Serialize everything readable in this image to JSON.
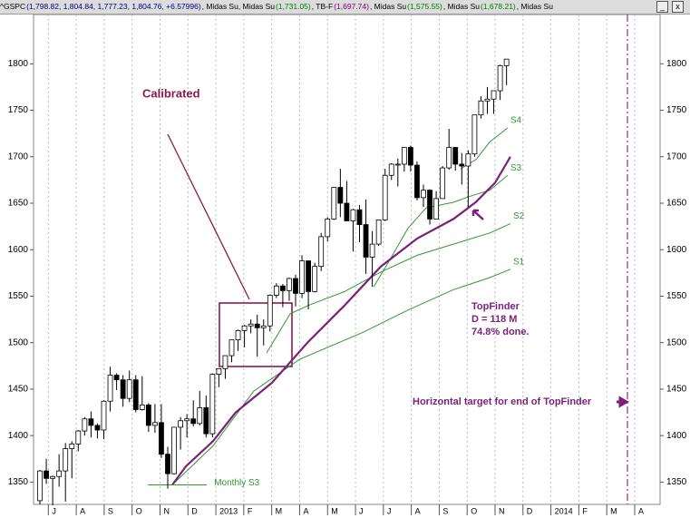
{
  "header": {
    "segments": [
      {
        "text": "^GSPC",
        "color": "#000000"
      },
      {
        "text": "(1,798.82, 1,804.84, 1,777.23, 1,804.76, +6.57996)",
        "color": "#000080"
      },
      {
        "text": ", Midas Su, Midas Su",
        "color": "#000000"
      },
      {
        "text": "(1,731.05)",
        "color": "#008000"
      },
      {
        "text": ", TB-F",
        "color": "#000000"
      },
      {
        "text": "(1,697.74)",
        "color": "#800080"
      },
      {
        "text": ", Midas Su",
        "color": "#000000"
      },
      {
        "text": "(1,575.55)",
        "color": "#008000"
      },
      {
        "text": ", Midas Su",
        "color": "#000000"
      },
      {
        "text": "(1,678.21)",
        "color": "#008000"
      },
      {
        "text": ", Midas Su",
        "color": "#000000"
      }
    ]
  },
  "chart_data": {
    "type": "candlestick",
    "xlim": [
      0.47,
      22.91
    ],
    "ylim": [
      1326,
      1853
    ],
    "yticks": [
      1350,
      1400,
      1450,
      1500,
      1550,
      1600,
      1650,
      1700,
      1750,
      1800
    ],
    "xticks": [
      {
        "value": 1,
        "label": "J"
      },
      {
        "value": 2,
        "label": "A"
      },
      {
        "value": 3,
        "label": "S"
      },
      {
        "value": 4,
        "label": "O"
      },
      {
        "value": 5,
        "label": "N"
      },
      {
        "value": 6,
        "label": "D"
      },
      {
        "value": 7,
        "label": "2013"
      },
      {
        "value": 8,
        "label": "F"
      },
      {
        "value": 9,
        "label": "M"
      },
      {
        "value": 10,
        "label": "A"
      },
      {
        "value": 11,
        "label": "M"
      },
      {
        "value": 12,
        "label": "J"
      },
      {
        "value": 13,
        "label": "J"
      },
      {
        "value": 14,
        "label": "A"
      },
      {
        "value": 15,
        "label": "S"
      },
      {
        "value": 16,
        "label": "O"
      },
      {
        "value": 17,
        "label": "N"
      },
      {
        "value": 18,
        "label": "D"
      },
      {
        "value": 19,
        "label": "2014"
      },
      {
        "value": 20,
        "label": "F"
      },
      {
        "value": 21,
        "label": "M"
      },
      {
        "value": 22,
        "label": "A"
      }
    ],
    "grid": true,
    "candles": [
      [
        1330,
        1363,
        1326,
        1362
      ],
      [
        1362,
        1375,
        1348,
        1354
      ],
      [
        1354,
        1357,
        1325,
        1356
      ],
      [
        1356,
        1380,
        1345,
        1362
      ],
      [
        1362,
        1392,
        1329,
        1386
      ],
      [
        1386,
        1394,
        1354,
        1391
      ],
      [
        1391,
        1406,
        1383,
        1405
      ],
      [
        1405,
        1420,
        1400,
        1418
      ],
      [
        1418,
        1426,
        1398,
        1411
      ],
      [
        1411,
        1413,
        1397,
        1406
      ],
      [
        1406,
        1438,
        1396,
        1437
      ],
      [
        1437,
        1474,
        1426,
        1465
      ],
      [
        1465,
        1467,
        1449,
        1460
      ],
      [
        1460,
        1465,
        1431,
        1440
      ],
      [
        1440,
        1470,
        1436,
        1460
      ],
      [
        1460,
        1465,
        1425,
        1428
      ],
      [
        1428,
        1464,
        1427,
        1433
      ],
      [
        1433,
        1435,
        1404,
        1411
      ],
      [
        1411,
        1434,
        1403,
        1414
      ],
      [
        1414,
        1434,
        1376,
        1380
      ],
      [
        1380,
        1388,
        1343,
        1359
      ],
      [
        1359,
        1409,
        1358,
        1409
      ],
      [
        1409,
        1420,
        1385,
        1416
      ],
      [
        1416,
        1423,
        1398,
        1418
      ],
      [
        1418,
        1438,
        1410,
        1413
      ],
      [
        1413,
        1448,
        1411,
        1430
      ],
      [
        1430,
        1443,
        1398,
        1402
      ],
      [
        1402,
        1467,
        1398,
        1466
      ],
      [
        1466,
        1472,
        1452,
        1472
      ],
      [
        1472,
        1486,
        1461,
        1486
      ],
      [
        1486,
        1503,
        1479,
        1503
      ],
      [
        1503,
        1514,
        1491,
        1513
      ],
      [
        1513,
        1519,
        1495,
        1518
      ],
      [
        1518,
        1525,
        1510,
        1520
      ],
      [
        1520,
        1530,
        1485,
        1516
      ],
      [
        1516,
        1525,
        1497,
        1518
      ],
      [
        1518,
        1552,
        1512,
        1551
      ],
      [
        1551,
        1564,
        1548,
        1561
      ],
      [
        1561,
        1563,
        1538,
        1556
      ],
      [
        1556,
        1570,
        1545,
        1569
      ],
      [
        1569,
        1573,
        1539,
        1553
      ],
      [
        1553,
        1594,
        1548,
        1588
      ],
      [
        1588,
        1588,
        1536,
        1555
      ],
      [
        1555,
        1586,
        1554,
        1582
      ],
      [
        1582,
        1618,
        1577,
        1614
      ],
      [
        1614,
        1635,
        1609,
        1633
      ],
      [
        1633,
        1667,
        1632,
        1667
      ],
      [
        1667,
        1687,
        1635,
        1650
      ],
      [
        1650,
        1674,
        1631,
        1631
      ],
      [
        1631,
        1644,
        1598,
        1643
      ],
      [
        1643,
        1648,
        1608,
        1627
      ],
      [
        1627,
        1654,
        1574,
        1592
      ],
      [
        1592,
        1620,
        1560,
        1606
      ],
      [
        1606,
        1632,
        1604,
        1632
      ],
      [
        1632,
        1687,
        1631,
        1680
      ],
      [
        1680,
        1693,
        1675,
        1692
      ],
      [
        1692,
        1698,
        1668,
        1692
      ],
      [
        1692,
        1710,
        1684,
        1710
      ],
      [
        1710,
        1712,
        1684,
        1691
      ],
      [
        1691,
        1695,
        1653,
        1656
      ],
      [
        1656,
        1670,
        1646,
        1664
      ],
      [
        1664,
        1665,
        1627,
        1633
      ],
      [
        1633,
        1663,
        1633,
        1655
      ],
      [
        1655,
        1690,
        1655,
        1688
      ],
      [
        1688,
        1730,
        1686,
        1710
      ],
      [
        1710,
        1710,
        1685,
        1692
      ],
      [
        1692,
        1704,
        1670,
        1690
      ],
      [
        1690,
        1707,
        1646,
        1703
      ],
      [
        1703,
        1745,
        1700,
        1745
      ],
      [
        1745,
        1765,
        1741,
        1760
      ],
      [
        1760,
        1775,
        1746,
        1762
      ],
      [
        1762,
        1771,
        1746,
        1771
      ],
      [
        1771,
        1799,
        1761,
        1798
      ],
      [
        1798,
        1805,
        1777,
        1805
      ]
    ],
    "series": [
      {
        "name": "S1",
        "color": "#2e9b2e",
        "x": [
          5.44,
          6.9,
          8.36,
          9.99,
          12.26,
          13.88,
          15.51,
          16.81,
          17.55
        ],
        "values": [
          1347,
          1389,
          1448,
          1482,
          1511,
          1535,
          1557,
          1570,
          1579
        ]
      },
      {
        "name": "S2",
        "color": "#2e9b2e",
        "x": [
          8.82,
          9.66,
          10.31,
          11.61,
          12.91,
          14.21,
          15.51,
          16.81,
          17.55
        ],
        "values": [
          1489,
          1531,
          1540,
          1555,
          1576,
          1594,
          1606,
          1618,
          1628
        ]
      },
      {
        "name": "S3",
        "color": "#2e9b2e",
        "x": [
          12.65,
          13.23,
          13.88,
          14.53,
          15.51,
          16.16,
          16.81,
          17.45
        ],
        "values": [
          1560,
          1589,
          1623,
          1645,
          1651,
          1658,
          1664,
          1680
        ]
      },
      {
        "name": "S4",
        "color": "#2e9b2e",
        "x": [
          15.77,
          16.32,
          16.81,
          17.45
        ],
        "values": [
          1687,
          1697,
          1716,
          1731
        ]
      },
      {
        "name": "TopFinder",
        "color": "#7b1f7b",
        "x": [
          5.44,
          5.93,
          6.9,
          7.71,
          9.01,
          10.31,
          11.61,
          12.91,
          14.21,
          15.51,
          16.3,
          17.0,
          17.55
        ],
        "values": [
          1347,
          1367,
          1394,
          1425,
          1457,
          1501,
          1540,
          1582,
          1612,
          1633,
          1651,
          1672,
          1700
        ]
      },
      {
        "name": "Monthly S3",
        "color": "#2e9b2e",
        "x": [
          4.57,
          6.68
        ],
        "values": [
          1347,
          1347
        ]
      }
    ],
    "annotations": {
      "calibrated": "Calibrated",
      "topfinder": [
        "TopFinder",
        "D = 118 M",
        "74.8% done."
      ],
      "target": "Horizontal target for end of TopFinder"
    }
  }
}
